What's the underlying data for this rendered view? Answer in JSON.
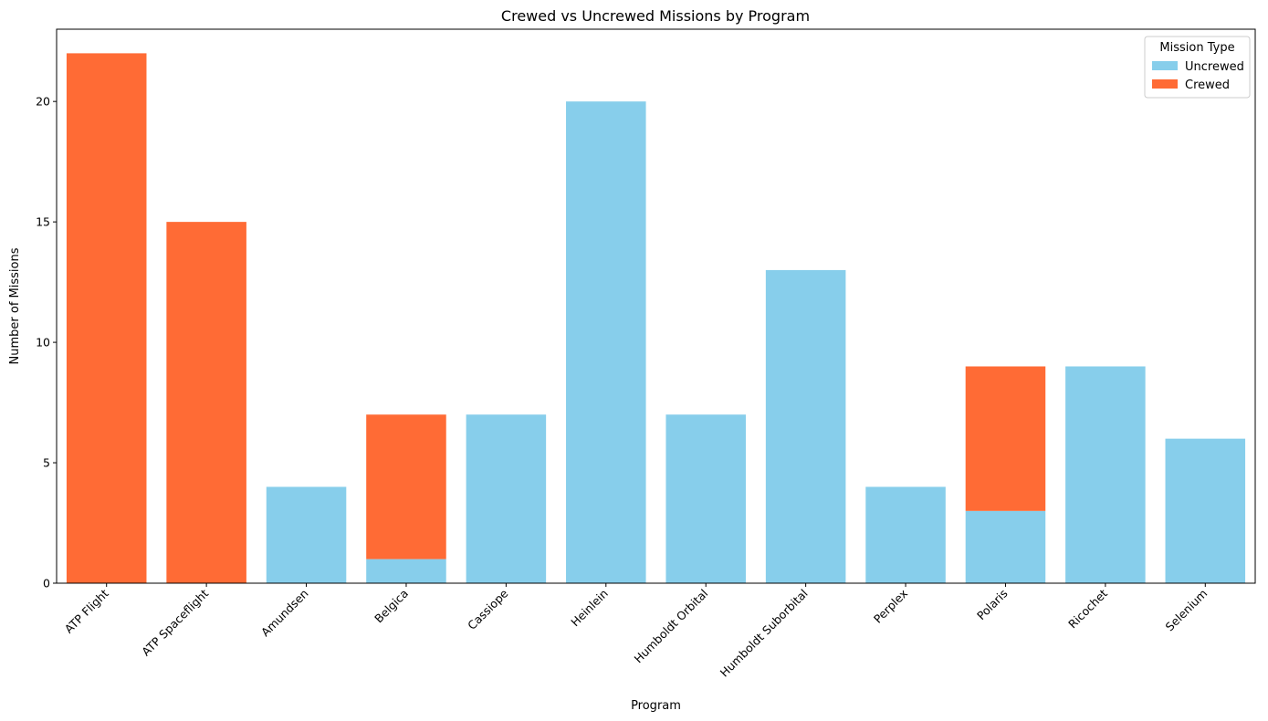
{
  "chart_data": {
    "type": "bar",
    "stacked": true,
    "title": "Crewed vs Uncrewed Missions by Program",
    "xlabel": "Program",
    "ylabel": "Number of Missions",
    "ylim": [
      0,
      23
    ],
    "yticks": [
      0,
      5,
      10,
      15,
      20
    ],
    "categories": [
      "ATP Flight",
      "ATP Spaceflight",
      "Amundsen",
      "Belgica",
      "Cassiope",
      "Heinlein",
      "Humboldt Orbital",
      "Humboldt Suborbital",
      "Perplex",
      "Polaris",
      "Ricochet",
      "Selenium"
    ],
    "series": [
      {
        "name": "Uncrewed",
        "color": "#87CEEB",
        "values": [
          0,
          0,
          4,
          1,
          7,
          20,
          7,
          13,
          4,
          3,
          9,
          6
        ]
      },
      {
        "name": "Crewed",
        "color": "#FF6B35",
        "values": [
          22,
          15,
          0,
          6,
          0,
          0,
          0,
          0,
          0,
          6,
          0,
          0
        ]
      }
    ],
    "legend": {
      "title": "Mission Type",
      "position": "top-right"
    },
    "grid": false
  }
}
